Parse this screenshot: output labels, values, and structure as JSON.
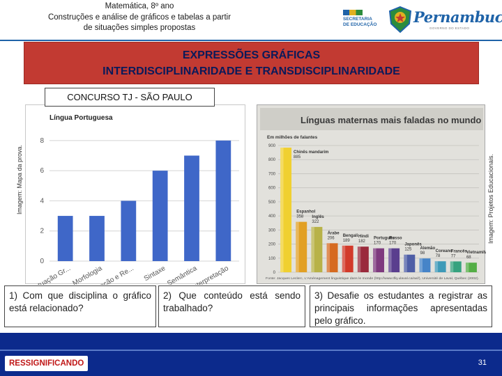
{
  "header": {
    "lines": [
      "Matemática, 8º ano",
      "Construções e análise de gráficos e tabelas a partir",
      "de situações simples propostas"
    ],
    "seduc_lines": [
      "SECRETARIA",
      "DE EDUCAÇÃO"
    ],
    "brand": "Pernambuco",
    "brand_subtitle": "GOVERNO DO ESTADO",
    "colors": {
      "blue": "#1f63a8",
      "yellow": "#e0b020",
      "green": "#2c8c3c"
    }
  },
  "banner": {
    "line1": "EXPRESSÕES GRÁFICAS",
    "line2": "INTERDISCIPLINARIDADE E TRANSDISCIPLINARIDADE",
    "color": "#c23a32"
  },
  "section_label": "CONCURSO TJ - SÃO PAULO",
  "credits": {
    "left": "Imagem: Mapa da prova.",
    "right": "Imagem: Projetos Educacionais."
  },
  "chart_data": [
    {
      "type": "bar",
      "title": "Língua Portuguesa",
      "categories": [
        "Acentuação Gr...",
        "Morfologia",
        "Correção e Re...",
        "Sintaxe",
        "Semântica",
        "Interpretação"
      ],
      "values": [
        3,
        3,
        4,
        6,
        7,
        8
      ],
      "yticks": [
        0,
        2,
        4,
        6,
        8
      ],
      "ylim": [
        0,
        8.5
      ],
      "grid": true,
      "bar_color": "#3f67c8"
    },
    {
      "type": "bar",
      "title": "Línguas maternas mais faladas no mundo",
      "ylabel": "Em milhões de falantes",
      "categories": [
        "Chinês mandarim",
        "Espanhol",
        "Inglês",
        "Árabe",
        "Bengali",
        "Hindi",
        "Português",
        "Russo",
        "Japonês",
        "Alemão",
        "Coreano",
        "Francês",
        "Vietnamita"
      ],
      "values": [
        885,
        358,
        322,
        206,
        189,
        182,
        170,
        170,
        125,
        98,
        78,
        77,
        68
      ],
      "labels": [
        "885",
        "358",
        "322",
        "206",
        "189",
        "182",
        "170",
        "170",
        "125",
        "98",
        "78",
        "77",
        "68"
      ],
      "colors": [
        "#f0d030",
        "#e2a024",
        "#b8b248",
        "#d66a20",
        "#d23a2a",
        "#9a2a3c",
        "#7e3a7e",
        "#5a3e8e",
        "#4e5ea6",
        "#4684c8",
        "#3e9ab8",
        "#36a27e",
        "#54ae46"
      ],
      "yticks": [
        0,
        100,
        200,
        300,
        400,
        500,
        600,
        700,
        800,
        900
      ],
      "ylim": [
        0,
        900
      ],
      "source": "Fonte: Jacques Leclerc, L'Aménagement linguistique dans le monde (http://www.tlfq.ulaval.ca/axl/), Université de Laval, Québec (2002)."
    }
  ],
  "questions": [
    "1) Com que disciplina o gráfico está relacionado?",
    "2) Que conteúdo está sendo trabalhado?",
    "3) Desafie os estudantes a registrar as principais informações apresentadas pelo gráfico."
  ],
  "footer": {
    "label": "RESSIGNIFICANDO",
    "page": "31"
  }
}
